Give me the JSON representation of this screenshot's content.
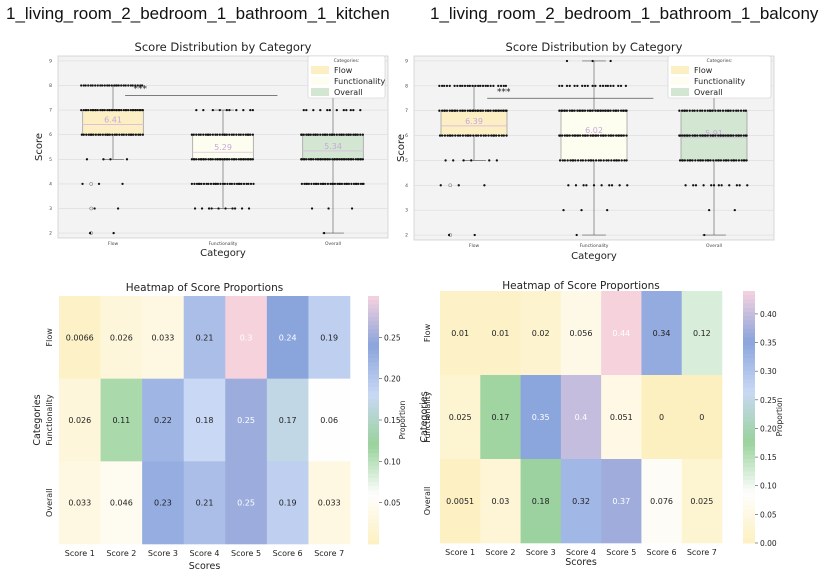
{
  "panels": [
    {
      "heading": "1_living_room_2_bedroom_1_bathroom_1_kitchen",
      "box": {
        "title": "Score Distribution by Category",
        "xlabel": "Category",
        "ylabel": "Score",
        "categories": [
          "Flow",
          "Functionality",
          "Overall"
        ],
        "ylim": [
          1.8,
          9.2
        ],
        "yticks": [
          "2",
          "3",
          "4",
          "5",
          "6",
          "7",
          "8",
          "9"
        ],
        "boxes": [
          {
            "q1": 6,
            "median": 6,
            "q3": 7,
            "wlo": 5,
            "whi": 8,
            "mean": 6.41,
            "mean_label": "6.41",
            "outliers": [
              2,
              3,
              4
            ]
          },
          {
            "q1": 5,
            "median": 5,
            "q3": 6,
            "wlo": 3,
            "whi": 7,
            "mean": 5.29,
            "mean_label": "5.29",
            "outliers": []
          },
          {
            "q1": 5,
            "median": 5,
            "q3": 6,
            "wlo": 2,
            "whi": 8,
            "mean": 5.34,
            "mean_label": "5.34",
            "outliers": []
          }
        ],
        "points": [
          {
            "2": 2,
            "3": 2,
            "4": 3,
            "5": 4,
            "6": 30,
            "7": 40,
            "8": 28
          },
          {
            "3": 10,
            "4": 30,
            "5": 40,
            "6": 30,
            "7": 10
          },
          {
            "2": 1,
            "3": 3,
            "4": 35,
            "5": 42,
            "6": 35,
            "7": 12,
            "8": 4
          }
        ],
        "significance": {
          "label": "***",
          "from": 0,
          "to": 1,
          "y": 7.6
        },
        "legend_title": "Categories:",
        "legend": [
          "Flow",
          "Functionality",
          "Overall"
        ]
      },
      "heatmap": {
        "title": "Heatmap of Score Proportions",
        "xlabel": "Scores",
        "ylabel": "Categories",
        "rows": [
          "Flow",
          "Functionality",
          "Overall"
        ],
        "cols": [
          "Score 1",
          "Score 2",
          "Score 3",
          "Score 4",
          "Score 5",
          "Score 6",
          "Score 7"
        ],
        "values": [
          [
            0.0066,
            0.026,
            0.033,
            0.21,
            0.3,
            0.24,
            0.19
          ],
          [
            0.026,
            0.11,
            0.22,
            0.18,
            0.25,
            0.17,
            0.06
          ],
          [
            0.033,
            0.046,
            0.23,
            0.21,
            0.25,
            0.19,
            0.033
          ]
        ],
        "labels": [
          [
            "0.0066",
            "0.026",
            "0.033",
            "0.21",
            "0.3",
            "0.24",
            "0.19"
          ],
          [
            "0.026",
            "0.11",
            "0.22",
            "0.18",
            "0.25",
            "0.17",
            "0.06"
          ],
          [
            "0.033",
            "0.046",
            "0.23",
            "0.21",
            "0.25",
            "0.19",
            "0.033"
          ]
        ],
        "vmin": 0.0,
        "vmax": 0.3,
        "cbar_ticks": [
          "0.05",
          "0.10",
          "0.15",
          "0.20",
          "0.25"
        ],
        "cbar_label": "Proportion"
      }
    },
    {
      "heading": "1_living_room_2_bedroom_1_bathroom_1_balcony",
      "box": {
        "title": "Score Distribution by Category",
        "xlabel": "Category",
        "ylabel": "Score",
        "categories": [
          "Flow",
          "Functionality",
          "Overall"
        ],
        "ylim": [
          1.8,
          9.2
        ],
        "yticks": [
          "2",
          "3",
          "4",
          "5",
          "6",
          "7",
          "8",
          "9"
        ],
        "boxes": [
          {
            "q1": 6,
            "median": 6,
            "q3": 7,
            "wlo": 5,
            "whi": 8,
            "mean": 6.39,
            "mean_label": "6.39",
            "outliers": [
              2,
              4
            ]
          },
          {
            "q1": 5,
            "median": 6,
            "q3": 7,
            "wlo": 2,
            "whi": 9,
            "mean": 6.02,
            "mean_label": "6.02",
            "outliers": []
          },
          {
            "q1": 5,
            "median": 6,
            "q3": 7,
            "wlo": 2,
            "whi": 8,
            "mean": 5.91,
            "mean_label": "5.91",
            "outliers": []
          }
        ],
        "points": [
          {
            "2": 2,
            "4": 3,
            "5": 6,
            "6": 30,
            "7": 40,
            "8": 25
          },
          {
            "2": 1,
            "3": 3,
            "4": 10,
            "5": 30,
            "6": 38,
            "7": 40,
            "8": 20,
            "9": 3
          },
          {
            "2": 1,
            "3": 2,
            "4": 12,
            "5": 35,
            "6": 40,
            "7": 30,
            "8": 8
          }
        ],
        "significance": {
          "label": "***",
          "from": 0,
          "to": 1,
          "y": 7.5
        },
        "legend_title": "Categories:",
        "legend": [
          "Flow",
          "Functionality",
          "Overall"
        ]
      },
      "heatmap": {
        "title": "Heatmap of Score Proportions",
        "xlabel": "Scores",
        "ylabel": "Categories",
        "rows": [
          "Flow",
          "Functionality",
          "Overall"
        ],
        "cols": [
          "Score 1",
          "Score 2",
          "Score 3",
          "Score 4",
          "Score 5",
          "Score 6",
          "Score 7"
        ],
        "values": [
          [
            0.01,
            0.01,
            0.02,
            0.056,
            0.44,
            0.34,
            0.12
          ],
          [
            0.025,
            0.17,
            0.35,
            0.4,
            0.051,
            0,
            0
          ],
          [
            0.0051,
            0.03,
            0.18,
            0.32,
            0.37,
            0.076,
            0.025
          ]
        ],
        "labels": [
          [
            "0.01",
            "0.01",
            "0.02",
            "0.056",
            "0.44",
            "0.34",
            "0.12"
          ],
          [
            "0.025",
            "0.17",
            "0.35",
            "0.4",
            "0.051",
            "0",
            "0"
          ],
          [
            "0.0051",
            "0.03",
            "0.18",
            "0.32",
            "0.37",
            "0.076",
            "0.025"
          ]
        ],
        "vmin": 0.0,
        "vmax": 0.44,
        "cbar_ticks": [
          "0.00",
          "0.05",
          "0.10",
          "0.15",
          "0.20",
          "0.25",
          "0.30",
          "0.35",
          "0.40"
        ],
        "cbar_label": "Proportion"
      }
    }
  ],
  "colors": {
    "flow": "#fcefc4",
    "functionality": "#fefef0",
    "overall": "#d2e6d2",
    "mean_text": "#c8a8d8",
    "plot_bg": "#f3f3f3",
    "cmap": [
      "#fdf0c0",
      "#fefefe",
      "#99d29b",
      "#c9d8f4",
      "#8aa4dc",
      "#f6d2dd"
    ]
  }
}
